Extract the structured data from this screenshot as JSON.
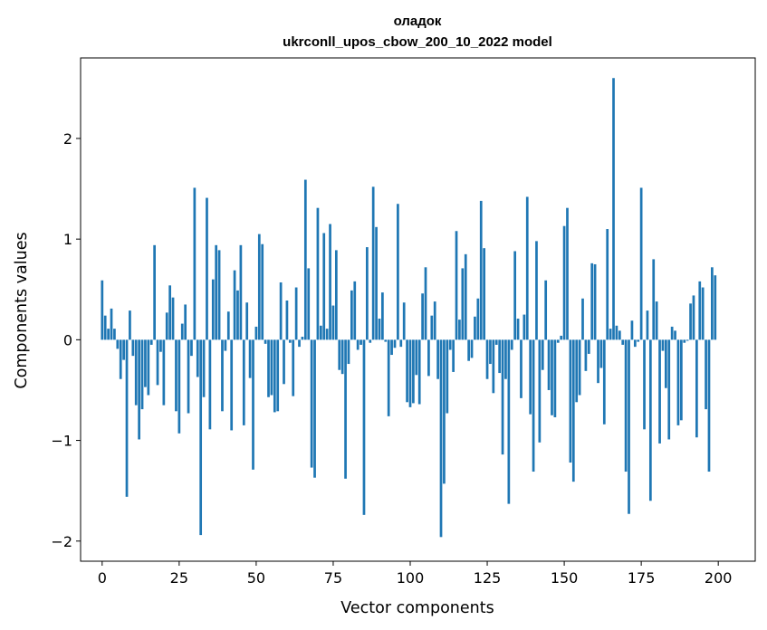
{
  "chart_data": {
    "type": "bar",
    "title": "оладок",
    "subtitle": "ukrconll_upos_cbow_200_10_2022 model",
    "xlabel": "Vector components",
    "ylabel": "Components values",
    "xlim": [
      -7,
      212
    ],
    "ylim": [
      -2.2,
      2.8
    ],
    "x_ticks": [
      0,
      25,
      50,
      75,
      100,
      125,
      150,
      175,
      200
    ],
    "y_ticks": [
      -2,
      -1,
      0,
      1,
      2
    ],
    "y_tick_labels": [
      "−2",
      "−1",
      "0",
      "1",
      "2"
    ],
    "grid": false,
    "bar_color": "#1f77b4",
    "x": [
      0,
      1,
      2,
      3,
      4,
      5,
      6,
      7,
      8,
      9,
      10,
      11,
      12,
      13,
      14,
      15,
      16,
      17,
      18,
      19,
      20,
      21,
      22,
      23,
      24,
      25,
      26,
      27,
      28,
      29,
      30,
      31,
      32,
      33,
      34,
      35,
      36,
      37,
      38,
      39,
      40,
      41,
      42,
      43,
      44,
      45,
      46,
      47,
      48,
      49,
      50,
      51,
      52,
      53,
      54,
      55,
      56,
      57,
      58,
      59,
      60,
      61,
      62,
      63,
      64,
      65,
      66,
      67,
      68,
      69,
      70,
      71,
      72,
      73,
      74,
      75,
      76,
      77,
      78,
      79,
      80,
      81,
      82,
      83,
      84,
      85,
      86,
      87,
      88,
      89,
      90,
      91,
      92,
      93,
      94,
      95,
      96,
      97,
      98,
      99,
      100,
      101,
      102,
      103,
      104,
      105,
      106,
      107,
      108,
      109,
      110,
      111,
      112,
      113,
      114,
      115,
      116,
      117,
      118,
      119,
      120,
      121,
      122,
      123,
      124,
      125,
      126,
      127,
      128,
      129,
      130,
      131,
      132,
      133,
      134,
      135,
      136,
      137,
      138,
      139,
      140,
      141,
      142,
      143,
      144,
      145,
      146,
      147,
      148,
      149,
      150,
      151,
      152,
      153,
      154,
      155,
      156,
      157,
      158,
      159,
      160,
      161,
      162,
      163,
      164,
      165,
      166,
      167,
      168,
      169,
      170,
      171,
      172,
      173,
      174,
      175,
      176,
      177,
      178,
      179,
      180,
      181,
      182,
      183,
      184,
      185,
      186,
      187,
      188,
      189,
      190,
      191,
      192,
      193,
      194,
      195,
      196,
      197,
      198,
      199
    ],
    "values": [
      0.59,
      0.24,
      0.11,
      0.31,
      0.11,
      -0.09,
      -0.39,
      -0.2,
      -1.56,
      0.29,
      -0.16,
      -0.65,
      -0.99,
      -0.69,
      -0.47,
      -0.55,
      -0.05,
      0.94,
      -0.45,
      -0.12,
      -0.65,
      0.27,
      0.54,
      0.42,
      -0.71,
      -0.93,
      0.16,
      0.35,
      -0.73,
      -0.16,
      1.51,
      -0.37,
      -1.94,
      -0.57,
      1.41,
      -0.89,
      0.6,
      0.94,
      0.89,
      -0.71,
      -0.11,
      0.28,
      -0.9,
      0.69,
      0.49,
      0.94,
      -0.85,
      0.37,
      -0.38,
      -1.29,
      0.13,
      1.05,
      0.95,
      -0.04,
      -0.57,
      -0.55,
      -0.72,
      -0.71,
      0.57,
      -0.44,
      0.39,
      -0.03,
      -0.56,
      0.52,
      -0.07,
      0.03,
      1.59,
      0.71,
      -1.27,
      -1.37,
      1.31,
      0.14,
      1.06,
      0.11,
      1.15,
      0.34,
      0.89,
      -0.3,
      -0.34,
      -1.38,
      -0.24,
      0.49,
      0.58,
      -0.1,
      -0.05,
      -1.74,
      0.92,
      -0.03,
      1.52,
      1.12,
      0.21,
      0.47,
      -0.02,
      -0.76,
      -0.15,
      -0.08,
      1.35,
      -0.07,
      0.37,
      -0.62,
      -0.67,
      -0.63,
      -0.35,
      -0.64,
      0.46,
      0.72,
      -0.36,
      0.24,
      0.38,
      -0.39,
      -1.96,
      -1.43,
      -0.73,
      -0.1,
      -0.32,
      1.08,
      0.2,
      0.71,
      0.85,
      -0.21,
      -0.18,
      0.23,
      0.41,
      1.38,
      0.91,
      -0.39,
      -0.24,
      -0.53,
      -0.05,
      -0.33,
      -1.14,
      -0.39,
      -1.63,
      -0.1,
      0.88,
      0.21,
      -0.58,
      0.25,
      1.42,
      -0.74,
      -1.31,
      0.98,
      -1.02,
      -0.3,
      0.59,
      -0.5,
      -0.75,
      -0.77,
      -0.03,
      0.04,
      1.13,
      1.31,
      -1.22,
      -1.41,
      -0.62,
      -0.55,
      0.41,
      -0.31,
      -0.14,
      0.76,
      0.75,
      -0.43,
      -0.28,
      -0.84,
      1.1,
      0.11,
      2.6,
      0.14,
      0.09,
      -0.05,
      -1.31,
      -1.73,
      0.19,
      -0.07,
      -0.02,
      1.51,
      -0.89,
      0.29,
      -1.6,
      0.8,
      0.38,
      -1.03,
      -0.11,
      -0.48,
      -0.99,
      0.13,
      0.09,
      -0.85,
      -0.8,
      -0.03,
      -0.01,
      0.36,
      0.44,
      -0.97,
      0.58,
      0.52,
      -0.69,
      -1.31,
      0.72,
      0.64
    ]
  }
}
